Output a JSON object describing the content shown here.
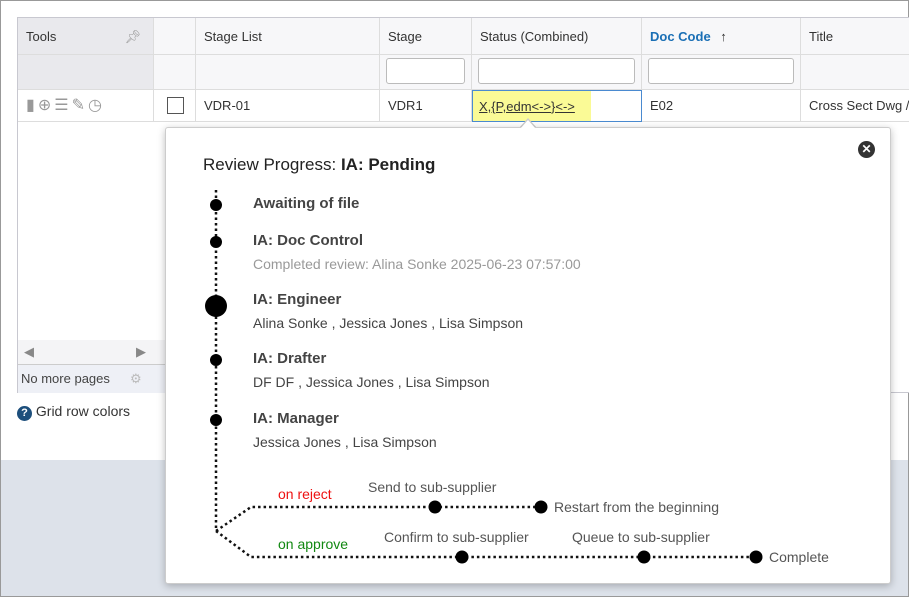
{
  "grid": {
    "columns": [
      "Tools",
      "",
      "Stage List",
      "Stage",
      "Status (Combined)",
      "Doc Code",
      "Title"
    ],
    "sort_indicator": "↑",
    "row": {
      "stage_list": "VDR-01",
      "stage": "VDR1",
      "status": "X,{P,edm<->}<->",
      "doc_code": "E02",
      "title": "Cross Sect Dwg /"
    },
    "pager_text": "No more pages"
  },
  "help_link": "Grid row colors",
  "popup": {
    "title_prefix": "Review Progress: ",
    "title_status": "IA: Pending",
    "steps": [
      {
        "name": "Awaiting of file",
        "detail": ""
      },
      {
        "name": "IA: Doc Control",
        "detail": "Completed review: Alina Sonke 2025-06-23 07:57:00"
      },
      {
        "name": "IA: Engineer",
        "detail": "Alina Sonke , Jessica Jones , Lisa Simpson"
      },
      {
        "name": "IA: Drafter",
        "detail": "DF DF , Jessica Jones , Lisa Simpson"
      },
      {
        "name": "IA: Manager",
        "detail": "Jessica Jones , Lisa Simpson"
      }
    ],
    "reject_label": "on reject",
    "approve_label": "on approve",
    "reject_steps": [
      "Send to sub-supplier",
      "Restart from the beginning"
    ],
    "approve_steps": [
      "Confirm to sub-supplier",
      "Queue to sub-supplier",
      "Complete"
    ],
    "colors": {
      "reject": "#ee1111",
      "approve": "#118811",
      "highlight": "#fafa96",
      "link": "#1a6fb5"
    }
  }
}
